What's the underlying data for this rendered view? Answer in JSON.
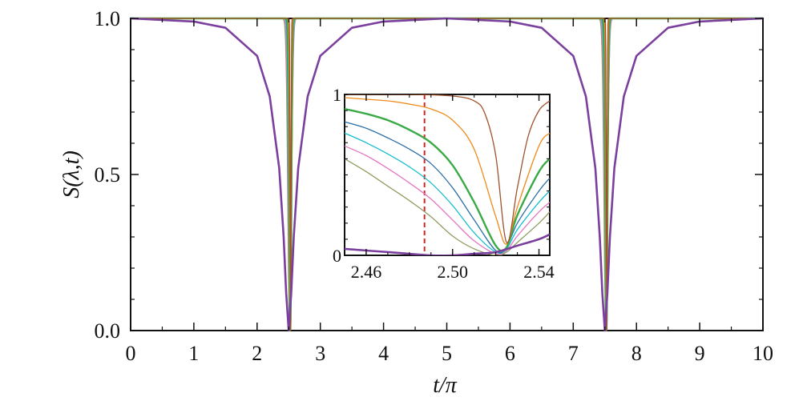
{
  "chart_data": [
    {
      "type": "line",
      "xlabel": "t/π",
      "ylabel": "S(λ,t)",
      "xlim": [
        0,
        10
      ],
      "ylim": [
        0,
        1
      ],
      "x_ticks": [
        "0",
        "1",
        "2",
        "3",
        "4",
        "5",
        "6",
        "7",
        "8",
        "9",
        "10"
      ],
      "y_ticks": [
        "0.0",
        "0.5",
        "1.0"
      ],
      "grid": false,
      "legend": "none",
      "series": [
        {
          "color": "#7b3f9e",
          "line_width": 2.6,
          "dip_centers": [
            2.5,
            7.5
          ],
          "min_value": 0.0,
          "half_width": 0.17,
          "points": [
            [
              0,
              1.0
            ],
            [
              1,
              0.99
            ],
            [
              1.5,
              0.97
            ],
            [
              2.0,
              0.88
            ],
            [
              2.2,
              0.75
            ],
            [
              2.35,
              0.52
            ],
            [
              2.42,
              0.3
            ],
            [
              2.46,
              0.12
            ],
            [
              2.5,
              0.0
            ],
            [
              2.54,
              0.12
            ],
            [
              2.58,
              0.3
            ],
            [
              2.65,
              0.52
            ],
            [
              2.8,
              0.75
            ],
            [
              3.0,
              0.88
            ],
            [
              3.5,
              0.97
            ],
            [
              4.0,
              0.99
            ],
            [
              5.0,
              1.0
            ],
            [
              6.0,
              0.99
            ],
            [
              6.5,
              0.97
            ],
            [
              7.0,
              0.88
            ],
            [
              7.2,
              0.75
            ],
            [
              7.35,
              0.52
            ],
            [
              7.42,
              0.3
            ],
            [
              7.46,
              0.12
            ],
            [
              7.5,
              0.0
            ],
            [
              7.54,
              0.12
            ],
            [
              7.58,
              0.3
            ],
            [
              7.65,
              0.52
            ],
            [
              7.8,
              0.75
            ],
            [
              8.0,
              0.88
            ],
            [
              8.5,
              0.97
            ],
            [
              9.0,
              0.99
            ],
            [
              10,
              1.0
            ]
          ]
        },
        {
          "color": "#8e9e62",
          "line_width": 1.3,
          "dip_centers": [
            2.515,
            7.515
          ],
          "min_value": 0.0,
          "half_width": 0.04
        },
        {
          "color": "#e377c2",
          "line_width": 1.3,
          "dip_centers": [
            2.52,
            7.52
          ],
          "min_value": 0.0,
          "half_width": 0.035
        },
        {
          "color": "#17becf",
          "line_width": 1.3,
          "dip_centers": [
            2.522,
            7.522
          ],
          "min_value": 0.0,
          "half_width": 0.03
        },
        {
          "color": "#2b6fa8",
          "line_width": 1.3,
          "dip_centers": [
            2.524,
            7.524
          ],
          "min_value": 0.0,
          "half_width": 0.026
        },
        {
          "color": "#3aaa46",
          "line_width": 2.4,
          "dip_centers": [
            2.526,
            7.526
          ],
          "min_value": 0.0,
          "half_width": 0.022
        },
        {
          "color": "#ef8a1a",
          "line_width": 1.3,
          "dip_centers": [
            2.528,
            7.528
          ],
          "min_value": 0.0,
          "half_width": 0.016
        },
        {
          "color": "#a0522d",
          "line_width": 1.3,
          "dip_centers": [
            2.53,
            7.53
          ],
          "min_value": 0.0,
          "half_width": 0.01
        }
      ]
    },
    {
      "type": "line",
      "role": "inset",
      "xlim": [
        2.45,
        2.545
      ],
      "ylim": [
        0,
        1
      ],
      "x_ticks": [
        "2.46",
        "2.50",
        "2.54"
      ],
      "y_ticks": [
        "0",
        "1"
      ],
      "vline": {
        "x": 2.487,
        "color": "#d62728",
        "style": "dashed"
      },
      "series": [
        {
          "color": "#7b3f9e",
          "line_width": 2.6,
          "points": [
            [
              2.45,
              0.04
            ],
            [
              2.47,
              0.02
            ],
            [
              2.49,
              0.0
            ],
            [
              2.5,
              0.0
            ],
            [
              2.51,
              0.01
            ],
            [
              2.52,
              0.02
            ],
            [
              2.53,
              0.06
            ],
            [
              2.54,
              0.1
            ],
            [
              2.545,
              0.13
            ]
          ]
        },
        {
          "color": "#8e9e62",
          "line_width": 1.3,
          "points": [
            [
              2.45,
              0.6
            ],
            [
              2.46,
              0.52
            ],
            [
              2.47,
              0.43
            ],
            [
              2.48,
              0.34
            ],
            [
              2.49,
              0.24
            ],
            [
              2.5,
              0.12
            ],
            [
              2.51,
              0.04
            ],
            [
              2.52,
              0.0
            ],
            [
              2.525,
              0.02
            ],
            [
              2.53,
              0.08
            ],
            [
              2.54,
              0.2
            ],
            [
              2.545,
              0.27
            ]
          ]
        },
        {
          "color": "#e377c2",
          "line_width": 1.3,
          "points": [
            [
              2.45,
              0.68
            ],
            [
              2.46,
              0.62
            ],
            [
              2.47,
              0.54
            ],
            [
              2.48,
              0.45
            ],
            [
              2.49,
              0.35
            ],
            [
              2.5,
              0.22
            ],
            [
              2.51,
              0.09
            ],
            [
              2.52,
              0.01
            ],
            [
              2.525,
              0.03
            ],
            [
              2.53,
              0.12
            ],
            [
              2.54,
              0.27
            ],
            [
              2.545,
              0.33
            ]
          ]
        },
        {
          "color": "#17becf",
          "line_width": 1.3,
          "points": [
            [
              2.45,
              0.76
            ],
            [
              2.46,
              0.7
            ],
            [
              2.47,
              0.63
            ],
            [
              2.48,
              0.55
            ],
            [
              2.49,
              0.45
            ],
            [
              2.5,
              0.31
            ],
            [
              2.51,
              0.14
            ],
            [
              2.52,
              0.02
            ],
            [
              2.525,
              0.04
            ],
            [
              2.53,
              0.16
            ],
            [
              2.54,
              0.33
            ],
            [
              2.545,
              0.4
            ]
          ]
        },
        {
          "color": "#2b6fa8",
          "line_width": 1.3,
          "points": [
            [
              2.45,
              0.83
            ],
            [
              2.46,
              0.79
            ],
            [
              2.47,
              0.73
            ],
            [
              2.48,
              0.66
            ],
            [
              2.49,
              0.57
            ],
            [
              2.5,
              0.42
            ],
            [
              2.51,
              0.22
            ],
            [
              2.52,
              0.03
            ],
            [
              2.525,
              0.05
            ],
            [
              2.53,
              0.2
            ],
            [
              2.54,
              0.4
            ],
            [
              2.545,
              0.48
            ]
          ]
        },
        {
          "color": "#3aaa46",
          "line_width": 2.4,
          "points": [
            [
              2.45,
              0.91
            ],
            [
              2.46,
              0.88
            ],
            [
              2.47,
              0.84
            ],
            [
              2.48,
              0.78
            ],
            [
              2.49,
              0.7
            ],
            [
              2.5,
              0.56
            ],
            [
              2.51,
              0.33
            ],
            [
              2.52,
              0.06
            ],
            [
              2.525,
              0.05
            ],
            [
              2.53,
              0.25
            ],
            [
              2.54,
              0.52
            ],
            [
              2.545,
              0.6
            ]
          ]
        },
        {
          "color": "#ef8a1a",
          "line_width": 1.3,
          "points": [
            [
              2.45,
              0.98
            ],
            [
              2.46,
              0.97
            ],
            [
              2.47,
              0.96
            ],
            [
              2.48,
              0.94
            ],
            [
              2.49,
              0.91
            ],
            [
              2.5,
              0.84
            ],
            [
              2.51,
              0.66
            ],
            [
              2.52,
              0.24
            ],
            [
              2.525,
              0.07
            ],
            [
              2.53,
              0.3
            ],
            [
              2.54,
              0.68
            ],
            [
              2.545,
              0.76
            ]
          ]
        },
        {
          "color": "#a0522d",
          "line_width": 1.3,
          "points": [
            [
              2.45,
              1.0
            ],
            [
              2.48,
              1.0
            ],
            [
              2.5,
              0.99
            ],
            [
              2.51,
              0.96
            ],
            [
              2.515,
              0.88
            ],
            [
              2.52,
              0.62
            ],
            [
              2.525,
              0.08
            ],
            [
              2.53,
              0.42
            ],
            [
              2.535,
              0.74
            ],
            [
              2.54,
              0.9
            ],
            [
              2.545,
              0.96
            ]
          ]
        }
      ]
    }
  ]
}
